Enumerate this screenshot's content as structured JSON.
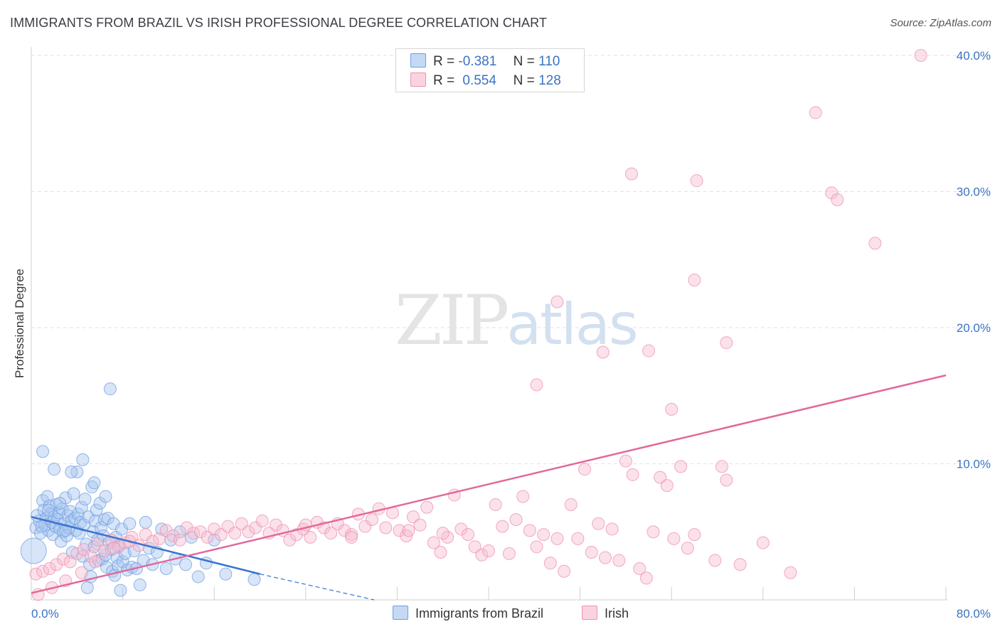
{
  "title": "IMMIGRANTS FROM BRAZIL VS IRISH PROFESSIONAL DEGREE CORRELATION CHART",
  "source": "Source: ZipAtlas.com",
  "watermark": {
    "zip": "ZIP",
    "atlas": "atlas"
  },
  "legend": {
    "r_label": "R =",
    "n_label": "N =",
    "rows": [
      {
        "r": "-0.381",
        "n": "110",
        "color": "#a9c6ef",
        "border": "#6f9de0"
      },
      {
        "r": "0.554",
        "n": "128",
        "color": "#f7bcd0",
        "border": "#ee8fb0"
      }
    ]
  },
  "bottom_legend": [
    "Immigrants from Brazil",
    "Irish"
  ],
  "chart_data": {
    "type": "scatter",
    "title": "IMMIGRANTS FROM BRAZIL VS IRISH PROFESSIONAL DEGREE CORRELATION CHART",
    "xlabel": "",
    "ylabel": "Professional Degree",
    "xlim": [
      0,
      80
    ],
    "ylim": [
      0,
      40
    ],
    "x_ticks": [
      0,
      80
    ],
    "x_tick_labels": [
      "0.0%",
      "80.0%"
    ],
    "y_ticks": [
      10,
      20,
      30,
      40
    ],
    "y_tick_labels": [
      "10.0%",
      "20.0%",
      "30.0%",
      "40.0%"
    ],
    "grid": true,
    "legend_position": "top-center",
    "series": [
      {
        "name": "Immigrants from Brazil",
        "color": "#6f9de0",
        "fill": "#a9c6ef",
        "r": -0.381,
        "n": 110,
        "trend": {
          "x": [
            0,
            20
          ],
          "y": [
            6.1,
            1.9
          ],
          "dashed_to": [
            30,
            0
          ]
        },
        "points": [
          [
            0.2,
            3.6
          ],
          [
            0.4,
            5.3
          ],
          [
            0.5,
            6.2
          ],
          [
            0.7,
            5.8
          ],
          [
            0.8,
            4.9
          ],
          [
            1.0,
            7.3
          ],
          [
            1.1,
            6.6
          ],
          [
            1.2,
            5.5
          ],
          [
            1.3,
            6.0
          ],
          [
            1.4,
            7.6
          ],
          [
            1.5,
            5.1
          ],
          [
            1.6,
            6.9
          ],
          [
            1.7,
            6.3
          ],
          [
            1.8,
            5.7
          ],
          [
            1.9,
            4.8
          ],
          [
            2.0,
            6.1
          ],
          [
            2.1,
            5.4
          ],
          [
            2.2,
            7.0
          ],
          [
            2.3,
            5.9
          ],
          [
            2.4,
            6.4
          ],
          [
            2.5,
            5.2
          ],
          [
            2.6,
            4.3
          ],
          [
            2.7,
            6.7
          ],
          [
            2.8,
            5.0
          ],
          [
            2.9,
            5.6
          ],
          [
            3.0,
            7.5
          ],
          [
            3.1,
            4.7
          ],
          [
            3.2,
            6.2
          ],
          [
            3.3,
            5.3
          ],
          [
            3.4,
            6.5
          ],
          [
            3.5,
            5.8
          ],
          [
            3.6,
            3.5
          ],
          [
            3.7,
            7.8
          ],
          [
            3.8,
            6.0
          ],
          [
            3.9,
            5.1
          ],
          [
            4.0,
            9.4
          ],
          [
            4.1,
            6.3
          ],
          [
            4.2,
            4.9
          ],
          [
            4.3,
            5.7
          ],
          [
            4.4,
            6.8
          ],
          [
            4.5,
            3.2
          ],
          [
            4.6,
            5.5
          ],
          [
            4.7,
            7.4
          ],
          [
            4.8,
            4.1
          ],
          [
            4.9,
            0.9
          ],
          [
            5.0,
            6.1
          ],
          [
            5.1,
            2.6
          ],
          [
            5.2,
            1.7
          ],
          [
            5.3,
            8.3
          ],
          [
            5.4,
            5.0
          ],
          [
            5.5,
            3.9
          ],
          [
            5.6,
            5.8
          ],
          [
            5.7,
            6.6
          ],
          [
            5.8,
            4.4
          ],
          [
            5.9,
            2.9
          ],
          [
            6.0,
            7.1
          ],
          [
            6.1,
            5.3
          ],
          [
            6.2,
            3.0
          ],
          [
            6.3,
            4.7
          ],
          [
            6.4,
            5.9
          ],
          [
            6.5,
            3.3
          ],
          [
            6.6,
            2.4
          ],
          [
            6.7,
            6.0
          ],
          [
            6.8,
            4.2
          ],
          [
            6.9,
            15.5
          ],
          [
            7.0,
            3.7
          ],
          [
            7.1,
            2.1
          ],
          [
            7.2,
            5.6
          ],
          [
            7.3,
            1.8
          ],
          [
            7.4,
            4.6
          ],
          [
            7.5,
            3.1
          ],
          [
            7.6,
            2.5
          ],
          [
            7.7,
            4.0
          ],
          [
            7.8,
            0.7
          ],
          [
            7.9,
            5.2
          ],
          [
            8.0,
            2.8
          ],
          [
            8.2,
            3.4
          ],
          [
            8.4,
            2.2
          ],
          [
            8.6,
            5.6
          ],
          [
            8.8,
            2.4
          ],
          [
            9.0,
            3.6
          ],
          [
            9.2,
            2.3
          ],
          [
            9.5,
            1.1
          ],
          [
            9.8,
            2.9
          ],
          [
            10.0,
            5.7
          ],
          [
            10.3,
            3.8
          ],
          [
            10.6,
            2.6
          ],
          [
            11.0,
            3.5
          ],
          [
            11.4,
            5.2
          ],
          [
            11.8,
            2.3
          ],
          [
            12.2,
            4.4
          ],
          [
            12.6,
            3.0
          ],
          [
            13.0,
            5.0
          ],
          [
            13.5,
            2.6
          ],
          [
            14.0,
            4.6
          ],
          [
            14.6,
            1.7
          ],
          [
            15.3,
            2.7
          ],
          [
            16.0,
            4.4
          ],
          [
            17.0,
            1.9
          ],
          [
            19.5,
            1.5
          ],
          [
            1.0,
            10.9
          ],
          [
            2.0,
            9.6
          ],
          [
            3.5,
            9.4
          ],
          [
            4.5,
            10.3
          ],
          [
            5.5,
            8.6
          ],
          [
            6.5,
            7.6
          ],
          [
            1.5,
            6.6
          ],
          [
            2.5,
            7.1
          ],
          [
            3.0,
            5.1
          ],
          [
            0.9,
            5.4
          ]
        ]
      },
      {
        "name": "Irish",
        "color": "#ee8fb0",
        "fill": "#f7bcd0",
        "r": 0.554,
        "n": 128,
        "trend": {
          "x": [
            0,
            80
          ],
          "y": [
            0.5,
            16.5
          ]
        },
        "points": [
          [
            0.4,
            1.9
          ],
          [
            1.0,
            2.1
          ],
          [
            1.6,
            2.3
          ],
          [
            2.2,
            2.6
          ],
          [
            2.8,
            3.0
          ],
          [
            3.4,
            2.8
          ],
          [
            4.0,
            3.4
          ],
          [
            4.6,
            3.7
          ],
          [
            5.2,
            3.2
          ],
          [
            5.8,
            4.1
          ],
          [
            6.4,
            3.6
          ],
          [
            7.0,
            4.4
          ],
          [
            7.6,
            3.9
          ],
          [
            8.2,
            4.2
          ],
          [
            8.8,
            4.6
          ],
          [
            9.4,
            4.0
          ],
          [
            10.0,
            4.8
          ],
          [
            10.6,
            4.3
          ],
          [
            11.2,
            4.5
          ],
          [
            11.8,
            5.1
          ],
          [
            12.4,
            4.7
          ],
          [
            13.0,
            4.4
          ],
          [
            13.6,
            5.3
          ],
          [
            14.2,
            4.9
          ],
          [
            14.8,
            5.0
          ],
          [
            15.4,
            4.6
          ],
          [
            16.0,
            5.2
          ],
          [
            16.6,
            4.8
          ],
          [
            17.2,
            5.4
          ],
          [
            17.8,
            4.9
          ],
          [
            18.4,
            5.6
          ],
          [
            19.0,
            5.0
          ],
          [
            19.6,
            5.3
          ],
          [
            20.2,
            5.8
          ],
          [
            20.8,
            4.9
          ],
          [
            21.4,
            5.5
          ],
          [
            22.0,
            5.1
          ],
          [
            22.6,
            4.4
          ],
          [
            23.2,
            4.8
          ],
          [
            23.8,
            5.2
          ],
          [
            24.4,
            4.6
          ],
          [
            25.0,
            5.7
          ],
          [
            25.6,
            5.3
          ],
          [
            26.2,
            4.9
          ],
          [
            26.8,
            5.6
          ],
          [
            27.4,
            5.1
          ],
          [
            28.0,
            4.8
          ],
          [
            28.6,
            6.3
          ],
          [
            29.2,
            5.4
          ],
          [
            29.8,
            5.9
          ],
          [
            30.4,
            6.7
          ],
          [
            31.0,
            5.3
          ],
          [
            31.6,
            6.4
          ],
          [
            32.2,
            5.1
          ],
          [
            32.8,
            4.7
          ],
          [
            33.4,
            6.1
          ],
          [
            34.0,
            5.5
          ],
          [
            34.6,
            6.8
          ],
          [
            35.2,
            4.2
          ],
          [
            35.8,
            3.5
          ],
          [
            36.4,
            4.6
          ],
          [
            37.0,
            7.7
          ],
          [
            37.6,
            5.2
          ],
          [
            38.2,
            4.8
          ],
          [
            38.8,
            3.9
          ],
          [
            39.4,
            3.3
          ],
          [
            40.0,
            3.6
          ],
          [
            40.6,
            7.0
          ],
          [
            41.2,
            5.4
          ],
          [
            41.8,
            3.4
          ],
          [
            42.4,
            5.9
          ],
          [
            43.0,
            7.6
          ],
          [
            43.6,
            5.1
          ],
          [
            44.2,
            3.9
          ],
          [
            44.8,
            4.8
          ],
          [
            45.4,
            2.7
          ],
          [
            46.0,
            4.5
          ],
          [
            46.6,
            2.1
          ],
          [
            47.2,
            7.0
          ],
          [
            47.8,
            4.5
          ],
          [
            48.4,
            9.6
          ],
          [
            49.0,
            3.5
          ],
          [
            49.6,
            5.6
          ],
          [
            50.2,
            3.1
          ],
          [
            50.8,
            5.2
          ],
          [
            51.4,
            2.9
          ],
          [
            52.0,
            10.2
          ],
          [
            52.6,
            9.2
          ],
          [
            53.2,
            2.3
          ],
          [
            53.8,
            1.6
          ],
          [
            54.4,
            5.0
          ],
          [
            55.0,
            9.0
          ],
          [
            55.6,
            8.4
          ],
          [
            56.2,
            4.5
          ],
          [
            56.8,
            9.8
          ],
          [
            57.4,
            3.8
          ],
          [
            58.0,
            4.8
          ],
          [
            59.8,
            2.9
          ],
          [
            60.4,
            9.8
          ],
          [
            60.8,
            8.8
          ],
          [
            62.0,
            2.6
          ],
          [
            64.0,
            4.2
          ],
          [
            66.4,
            2.0
          ],
          [
            0.6,
            0.4
          ],
          [
            1.8,
            0.9
          ],
          [
            3.0,
            1.4
          ],
          [
            4.4,
            2.0
          ],
          [
            5.6,
            2.8
          ],
          [
            7.2,
            3.8
          ],
          [
            8.6,
            4.3
          ],
          [
            46.0,
            21.9
          ],
          [
            44.2,
            15.8
          ],
          [
            50.0,
            18.2
          ],
          [
            54.0,
            18.3
          ],
          [
            56.0,
            14.0
          ],
          [
            58.0,
            23.5
          ],
          [
            60.8,
            18.9
          ],
          [
            52.5,
            31.3
          ],
          [
            58.2,
            30.8
          ],
          [
            70.0,
            29.9
          ],
          [
            70.5,
            29.4
          ],
          [
            73.8,
            26.2
          ],
          [
            68.6,
            35.8
          ],
          [
            77.8,
            40.0
          ],
          [
            36.0,
            4.9
          ],
          [
            28.0,
            4.6
          ],
          [
            33.0,
            5.1
          ],
          [
            24.0,
            5.5
          ]
        ]
      }
    ]
  }
}
